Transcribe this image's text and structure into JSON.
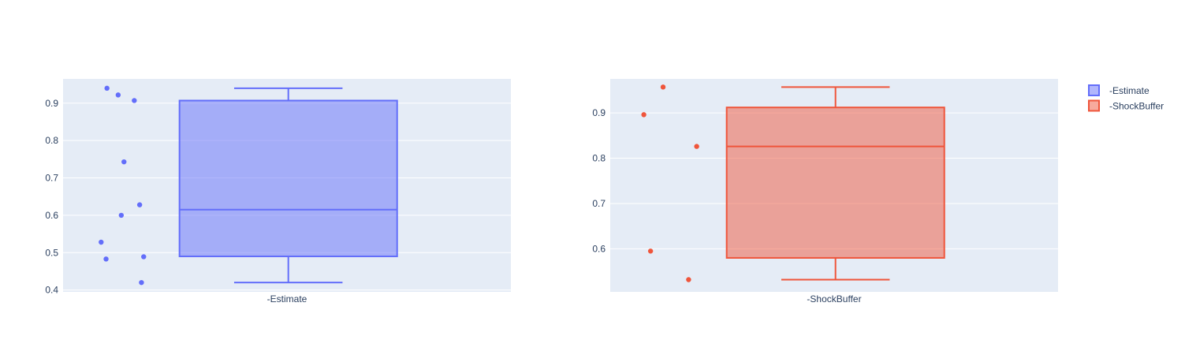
{
  "chart_data": [
    {
      "type": "box",
      "title": "",
      "xlabel": "",
      "ylabel": "",
      "categories": [
        "-Estimate"
      ],
      "ylim": [
        0.395,
        0.965
      ],
      "yticks": [
        0.4,
        0.5,
        0.6,
        0.7,
        0.8,
        0.9
      ],
      "grid": true,
      "series": [
        {
          "name": "-Estimate",
          "color": "#636efa",
          "box": {
            "min": 0.42,
            "q1": 0.49,
            "median": 0.615,
            "q3": 0.907,
            "max": 0.94
          },
          "points": [
            {
              "y": 0.94,
              "jitter": 0.098
            },
            {
              "y": 0.922,
              "jitter": 0.123
            },
            {
              "y": 0.907,
              "jitter": 0.159
            },
            {
              "y": 0.743,
              "jitter": 0.136
            },
            {
              "y": 0.628,
              "jitter": 0.171
            },
            {
              "y": 0.6,
              "jitter": 0.13
            },
            {
              "y": 0.528,
              "jitter": 0.085
            },
            {
              "y": 0.489,
              "jitter": 0.18
            },
            {
              "y": 0.483,
              "jitter": 0.096
            },
            {
              "y": 0.42,
              "jitter": 0.175
            }
          ]
        }
      ]
    },
    {
      "type": "box",
      "title": "",
      "xlabel": "",
      "ylabel": "",
      "categories": [
        "-ShockBuffer"
      ],
      "ylim": [
        0.505,
        0.975
      ],
      "yticks": [
        0.6,
        0.7,
        0.8,
        0.9
      ],
      "grid": true,
      "series": [
        {
          "name": "-ShockBuffer",
          "color": "#ef553b",
          "box": {
            "min": 0.532,
            "q1": 0.58,
            "median": 0.826,
            "q3": 0.912,
            "max": 0.957
          },
          "points": [
            {
              "y": 0.957,
              "jitter": 0.118
            },
            {
              "y": 0.896,
              "jitter": 0.075
            },
            {
              "y": 0.826,
              "jitter": 0.193
            },
            {
              "y": 0.595,
              "jitter": 0.09
            },
            {
              "y": 0.532,
              "jitter": 0.175
            }
          ]
        }
      ]
    }
  ],
  "legend": {
    "placement": "top-right",
    "items": [
      {
        "label": "-Estimate",
        "color": "#636efa"
      },
      {
        "label": "-ShockBuffer",
        "color": "#ef553b"
      }
    ]
  },
  "colors": {
    "plot_background": "#e5ecf6",
    "grid": "#ffffff",
    "text": "#2a3f5f"
  }
}
